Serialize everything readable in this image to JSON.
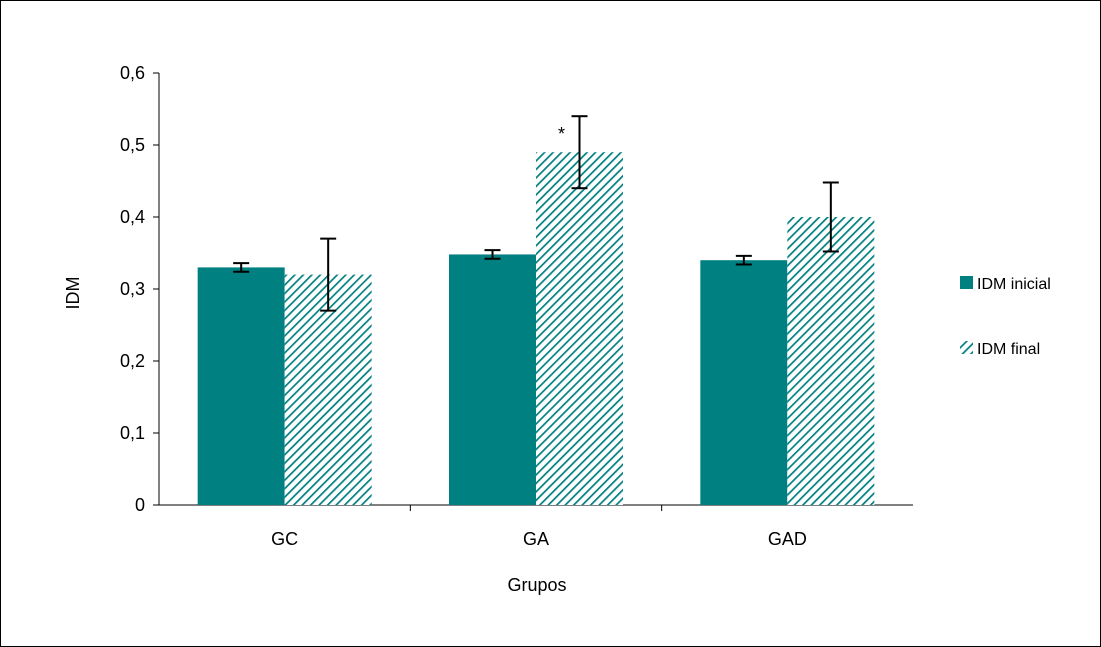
{
  "chart_data": {
    "type": "bar",
    "xlabel": "Grupos",
    "ylabel": "IDM",
    "categories": [
      "GC",
      "GA",
      "GAD"
    ],
    "ylim": [
      0,
      0.6
    ],
    "yticks": [
      "0",
      "0,1",
      "0,2",
      "0,3",
      "0,4",
      "0,5",
      "0,6"
    ],
    "series": [
      {
        "name": "IDM inicial",
        "values": [
          0.33,
          0.348,
          0.34
        ],
        "errors": [
          0.006,
          0.006,
          0.006
        ],
        "fill": "solid"
      },
      {
        "name": "IDM final",
        "values": [
          0.32,
          0.49,
          0.4
        ],
        "errors": [
          0.05,
          0.05,
          0.048
        ],
        "fill": "hatched"
      }
    ],
    "annotations": [
      {
        "category": "GA",
        "series": "IDM final",
        "text": "*"
      }
    ],
    "legend_position": "right",
    "grid": false
  },
  "colors": {
    "bar": "#008080",
    "axis": "#000000"
  }
}
